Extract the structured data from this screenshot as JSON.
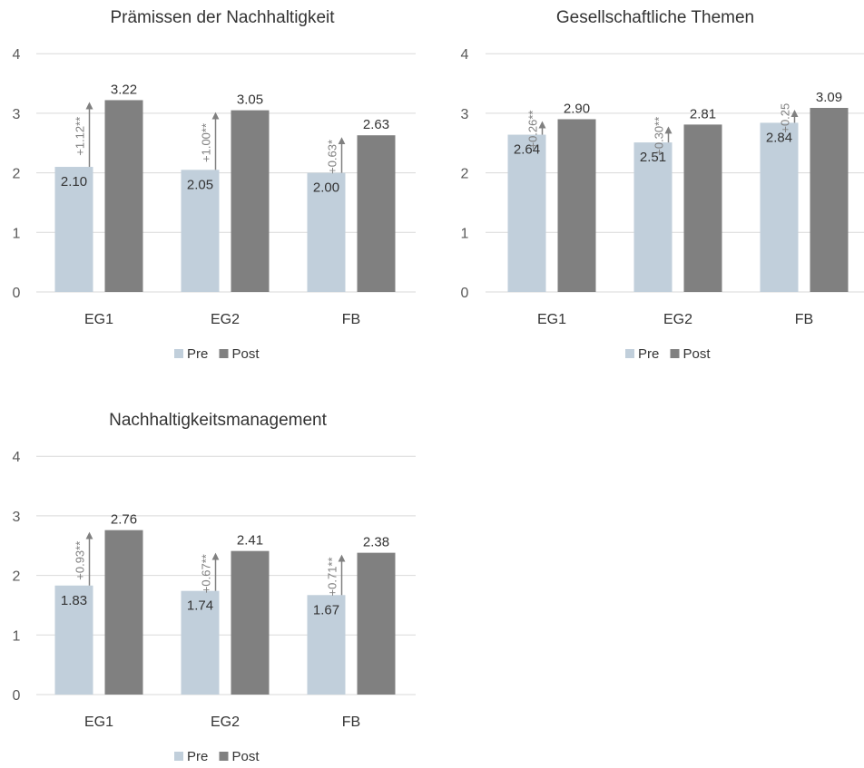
{
  "colors": {
    "pre": "#c1cfdb",
    "post": "#808080",
    "grid": "#d9d9d9",
    "arrow": "#808080"
  },
  "chart_data": [
    {
      "type": "bar",
      "title": "Prämissen der Nachhaltigkeit",
      "categories": [
        "EG1",
        "EG2",
        "FB"
      ],
      "series": [
        {
          "name": "Pre",
          "values": [
            2.1,
            2.05,
            2.0
          ],
          "labels": [
            "2.10",
            "2.05",
            "2.00"
          ]
        },
        {
          "name": "Post",
          "values": [
            3.22,
            3.05,
            2.63
          ],
          "labels": [
            "3.22",
            "3.05",
            "2.63"
          ]
        }
      ],
      "differences": [
        "+1.12**",
        "+1.00**",
        "+0.63*"
      ],
      "ylim": [
        0,
        4
      ],
      "yticks": [
        "0",
        "1",
        "2",
        "3",
        "4"
      ],
      "grid": true,
      "legend": "bottom"
    },
    {
      "type": "bar",
      "title": "Gesellschaftliche Themen",
      "categories": [
        "EG1",
        "EG2",
        "FB"
      ],
      "series": [
        {
          "name": "Pre",
          "values": [
            2.64,
            2.51,
            2.84
          ],
          "labels": [
            "2.64",
            "2.51",
            "2.84"
          ]
        },
        {
          "name": "Post",
          "values": [
            2.9,
            2.81,
            3.09
          ],
          "labels": [
            "2.90",
            "2.81",
            "3.09"
          ]
        }
      ],
      "differences": [
        "+0.26**",
        "+0.30**",
        "+0.25"
      ],
      "ylim": [
        0,
        4
      ],
      "yticks": [
        "0",
        "1",
        "2",
        "3",
        "4"
      ],
      "grid": true,
      "legend": "bottom"
    },
    {
      "type": "bar",
      "title": "Nachhaltigkeitsmanagement",
      "categories": [
        "EG1",
        "EG2",
        "FB"
      ],
      "series": [
        {
          "name": "Pre",
          "values": [
            1.83,
            1.74,
            1.67
          ],
          "labels": [
            "1.83",
            "1.74",
            "1.67"
          ]
        },
        {
          "name": "Post",
          "values": [
            2.76,
            2.41,
            2.38
          ],
          "labels": [
            "2.76",
            "2.41",
            "2.38"
          ]
        }
      ],
      "differences": [
        "+0.93**",
        "+0.67**",
        "+0.71**"
      ],
      "ylim": [
        0,
        4
      ],
      "yticks": [
        "0",
        "1",
        "2",
        "3",
        "4"
      ],
      "grid": true,
      "legend": "bottom"
    }
  ]
}
